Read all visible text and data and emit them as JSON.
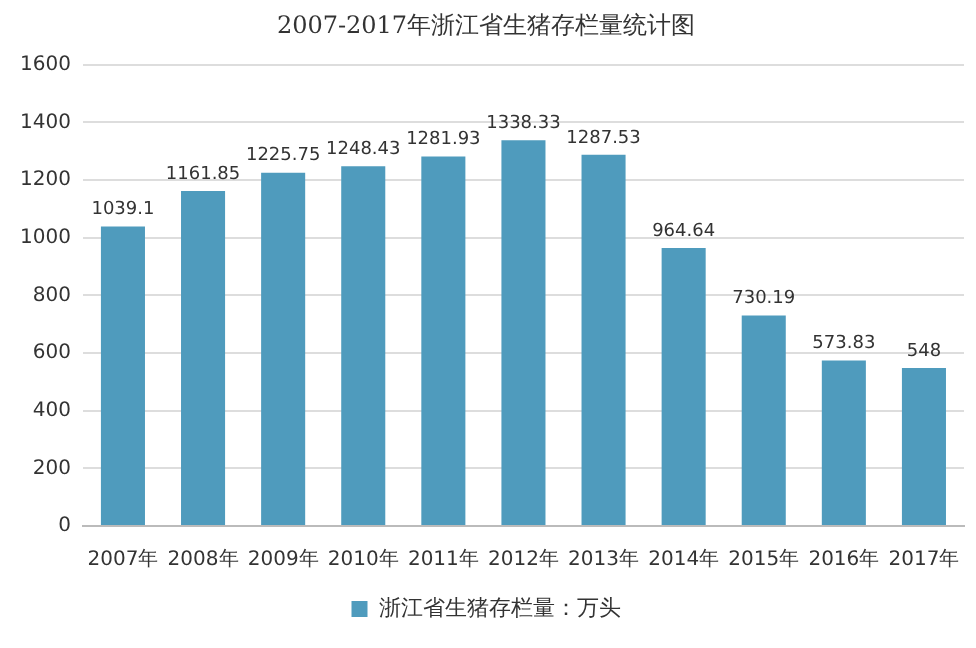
{
  "chart_data": {
    "type": "bar",
    "title": "2007-2017年浙江省生猪存栏量统计图",
    "categories": [
      "2007年",
      "2008年",
      "2009年",
      "2010年",
      "2011年",
      "2012年",
      "2013年",
      "2014年",
      "2015年",
      "2016年",
      "2017年"
    ],
    "series": [
      {
        "name": "浙江省生猪存栏量：万头",
        "color": "#4f9bbd",
        "values": [
          1039.1,
          1161.85,
          1225.75,
          1248.43,
          1281.93,
          1338.33,
          1287.53,
          964.64,
          730.19,
          573.83,
          548
        ]
      }
    ],
    "ylim": [
      0,
      1600
    ],
    "yticks": [
      0,
      200,
      400,
      600,
      800,
      1000,
      1200,
      1400,
      1600
    ],
    "grid": "y",
    "legend": "bottom",
    "data_labels": true
  }
}
